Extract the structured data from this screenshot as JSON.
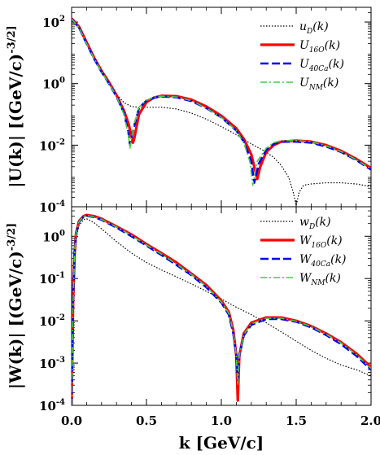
{
  "chart_data": [
    {
      "type": "line",
      "panel": "top",
      "ylabel": "|U(k)| [(GeV/c)^-3/2]",
      "xlabel": "",
      "xlim": [
        0,
        2.0
      ],
      "ylim": [
        0.0001,
        300
      ],
      "yscale": "log",
      "x_ticks": [
        0.0,
        0.5,
        1.0,
        1.5,
        2.0
      ],
      "y_ticks": [
        {
          "mant": "10",
          "exp": "2"
        },
        {
          "mant": "10",
          "exp": "0"
        },
        {
          "mant": "10",
          "exp": "-2"
        },
        {
          "mant": "10",
          "exp": "-4"
        }
      ],
      "legend_position": "top-right",
      "series": [
        {
          "name": "u_D(k)",
          "color": "#000000",
          "style": "dotted",
          "points": [
            [
              0.0,
              120
            ],
            [
              0.05,
              60
            ],
            [
              0.1,
              20
            ],
            [
              0.15,
              6
            ],
            [
              0.2,
              2.3
            ],
            [
              0.25,
              1.05
            ],
            [
              0.3,
              0.45
            ],
            [
              0.35,
              0.24
            ],
            [
              0.4,
              0.18
            ],
            [
              0.45,
              0.17
            ],
            [
              0.5,
              0.17
            ],
            [
              0.6,
              0.17
            ],
            [
              0.7,
              0.15
            ],
            [
              0.8,
              0.11
            ],
            [
              0.9,
              0.07
            ],
            [
              1.0,
              0.04
            ],
            [
              1.1,
              0.022
            ],
            [
              1.2,
              0.011
            ],
            [
              1.3,
              0.006
            ],
            [
              1.35,
              0.004
            ],
            [
              1.4,
              0.0022
            ],
            [
              1.45,
              0.0009
            ],
            [
              1.48,
              0.0003
            ],
            [
              1.5,
              0.00011
            ],
            [
              1.52,
              0.0003
            ],
            [
              1.55,
              0.0005
            ],
            [
              1.6,
              0.00055
            ],
            [
              1.7,
              0.0006
            ],
            [
              1.8,
              0.0006
            ],
            [
              1.9,
              0.00055
            ],
            [
              2.0,
              0.00045
            ]
          ]
        },
        {
          "name": "U_16O(k)",
          "color": "#ff0000",
          "style": "solid-thick",
          "points": [
            [
              0.0,
              130
            ],
            [
              0.05,
              70
            ],
            [
              0.1,
              22
            ],
            [
              0.15,
              7
            ],
            [
              0.2,
              2.6
            ],
            [
              0.25,
              1.1
            ],
            [
              0.3,
              0.42
            ],
            [
              0.35,
              0.13
            ],
            [
              0.38,
              0.05
            ],
            [
              0.4,
              0.02
            ],
            [
              0.41,
              0.012
            ],
            [
              0.42,
              0.018
            ],
            [
              0.45,
              0.1
            ],
            [
              0.5,
              0.25
            ],
            [
              0.55,
              0.35
            ],
            [
              0.6,
              0.4
            ],
            [
              0.7,
              0.39
            ],
            [
              0.8,
              0.3
            ],
            [
              0.9,
              0.18
            ],
            [
              1.0,
              0.09
            ],
            [
              1.1,
              0.035
            ],
            [
              1.15,
              0.016
            ],
            [
              1.2,
              0.005
            ],
            [
              1.24,
              0.0008
            ],
            [
              1.26,
              0.002
            ],
            [
              1.3,
              0.006
            ],
            [
              1.35,
              0.01
            ],
            [
              1.4,
              0.013
            ],
            [
              1.5,
              0.014
            ],
            [
              1.6,
              0.013
            ],
            [
              1.7,
              0.01
            ],
            [
              1.8,
              0.0065
            ],
            [
              1.9,
              0.0036
            ],
            [
              2.0,
              0.0018
            ]
          ]
        },
        {
          "name": "U_40Ca(k)",
          "color": "#0000ee",
          "style": "dashed",
          "points": [
            [
              0.0,
              125
            ],
            [
              0.05,
              65
            ],
            [
              0.1,
              20
            ],
            [
              0.15,
              6.5
            ],
            [
              0.2,
              2.4
            ],
            [
              0.25,
              1.0
            ],
            [
              0.3,
              0.38
            ],
            [
              0.35,
              0.11
            ],
            [
              0.38,
              0.025
            ],
            [
              0.39,
              0.01
            ],
            [
              0.41,
              0.03
            ],
            [
              0.45,
              0.16
            ],
            [
              0.5,
              0.28
            ],
            [
              0.55,
              0.35
            ],
            [
              0.6,
              0.38
            ],
            [
              0.7,
              0.36
            ],
            [
              0.8,
              0.27
            ],
            [
              0.9,
              0.16
            ],
            [
              1.0,
              0.08
            ],
            [
              1.1,
              0.03
            ],
            [
              1.15,
              0.013
            ],
            [
              1.2,
              0.003
            ],
            [
              1.22,
              0.0006
            ],
            [
              1.25,
              0.0025
            ],
            [
              1.3,
              0.007
            ],
            [
              1.35,
              0.011
            ],
            [
              1.4,
              0.013
            ],
            [
              1.5,
              0.013
            ],
            [
              1.6,
              0.012
            ],
            [
              1.7,
              0.009
            ],
            [
              1.8,
              0.006
            ],
            [
              1.9,
              0.0033
            ],
            [
              2.0,
              0.0016
            ]
          ]
        },
        {
          "name": "U_NM(k)",
          "color": "#44cc44",
          "style": "dashdot",
          "points": [
            [
              0.0,
              125
            ],
            [
              0.05,
              65
            ],
            [
              0.1,
              20
            ],
            [
              0.15,
              6.5
            ],
            [
              0.2,
              2.4
            ],
            [
              0.25,
              1.0
            ],
            [
              0.3,
              0.38
            ],
            [
              0.35,
              0.1
            ],
            [
              0.38,
              0.02
            ],
            [
              0.39,
              0.008
            ],
            [
              0.41,
              0.035
            ],
            [
              0.45,
              0.17
            ],
            [
              0.5,
              0.29
            ],
            [
              0.55,
              0.36
            ],
            [
              0.6,
              0.39
            ],
            [
              0.7,
              0.37
            ],
            [
              0.8,
              0.28
            ],
            [
              0.9,
              0.16
            ],
            [
              1.0,
              0.08
            ],
            [
              1.1,
              0.03
            ],
            [
              1.15,
              0.012
            ],
            [
              1.19,
              0.003
            ],
            [
              1.21,
              0.0005
            ],
            [
              1.24,
              0.003
            ],
            [
              1.3,
              0.008
            ],
            [
              1.35,
              0.012
            ],
            [
              1.4,
              0.014
            ],
            [
              1.5,
              0.014
            ],
            [
              1.6,
              0.013
            ],
            [
              1.7,
              0.0095
            ],
            [
              1.8,
              0.0062
            ],
            [
              1.9,
              0.0034
            ],
            [
              2.0,
              0.0017
            ]
          ]
        }
      ]
    },
    {
      "type": "line",
      "panel": "bottom",
      "ylabel": "|W(k)| [(GeV/c)^-3/2]",
      "xlabel": "k [GeV/c]",
      "xlim": [
        0,
        2.0
      ],
      "ylim": [
        0.0001,
        5
      ],
      "yscale": "log",
      "x_ticks": [
        0.0,
        0.5,
        1.0,
        1.5,
        2.0
      ],
      "y_ticks": [
        {
          "mant": "10",
          "exp": "0"
        },
        {
          "mant": "10",
          "exp": "-1"
        },
        {
          "mant": "10",
          "exp": "-2"
        },
        {
          "mant": "10",
          "exp": "-3"
        },
        {
          "mant": "10",
          "exp": "-4"
        }
      ],
      "legend_position": "top-right",
      "series": [
        {
          "name": "w_D(k)",
          "color": "#000000",
          "style": "dotted",
          "points": [
            [
              0.0,
              0.0001
            ],
            [
              0.01,
              0.02
            ],
            [
              0.02,
              0.3
            ],
            [
              0.03,
              0.9
            ],
            [
              0.05,
              1.8
            ],
            [
              0.08,
              2.5
            ],
            [
              0.1,
              2.6
            ],
            [
              0.15,
              2.1
            ],
            [
              0.2,
              1.5
            ],
            [
              0.3,
              0.75
            ],
            [
              0.4,
              0.4
            ],
            [
              0.5,
              0.24
            ],
            [
              0.6,
              0.16
            ],
            [
              0.7,
              0.11
            ],
            [
              0.8,
              0.075
            ],
            [
              0.9,
              0.05
            ],
            [
              1.0,
              0.033
            ],
            [
              1.1,
              0.021
            ],
            [
              1.2,
              0.014
            ],
            [
              1.3,
              0.009
            ],
            [
              1.4,
              0.0055
            ],
            [
              1.5,
              0.0033
            ],
            [
              1.6,
              0.002
            ],
            [
              1.7,
              0.0013
            ],
            [
              1.8,
              0.0009
            ],
            [
              1.9,
              0.0007
            ],
            [
              2.0,
              0.0005
            ]
          ]
        },
        {
          "name": "W_16O(k)",
          "color": "#ff0000",
          "style": "solid-thick",
          "points": [
            [
              0.0,
              0.0001
            ],
            [
              0.01,
              0.03
            ],
            [
              0.02,
              0.4
            ],
            [
              0.03,
              1.2
            ],
            [
              0.05,
              2.3
            ],
            [
              0.08,
              3.0
            ],
            [
              0.1,
              3.2
            ],
            [
              0.15,
              3.0
            ],
            [
              0.2,
              2.6
            ],
            [
              0.3,
              1.7
            ],
            [
              0.4,
              1.1
            ],
            [
              0.5,
              0.65
            ],
            [
              0.6,
              0.4
            ],
            [
              0.7,
              0.24
            ],
            [
              0.8,
              0.13
            ],
            [
              0.9,
              0.07
            ],
            [
              1.0,
              0.03
            ],
            [
              1.05,
              0.016
            ],
            [
              1.08,
              0.006
            ],
            [
              1.1,
              0.0015
            ],
            [
              1.11,
              0.00013
            ],
            [
              1.12,
              0.0015
            ],
            [
              1.15,
              0.005
            ],
            [
              1.2,
              0.009
            ],
            [
              1.3,
              0.012
            ],
            [
              1.4,
              0.012
            ],
            [
              1.5,
              0.01
            ],
            [
              1.6,
              0.0075
            ],
            [
              1.7,
              0.005
            ],
            [
              1.8,
              0.0031
            ],
            [
              1.9,
              0.0017
            ],
            [
              2.0,
              0.0008
            ]
          ]
        },
        {
          "name": "W_40Ca(k)",
          "color": "#0000ee",
          "style": "dashed",
          "points": [
            [
              0.0,
              0.0001
            ],
            [
              0.01,
              0.03
            ],
            [
              0.02,
              0.38
            ],
            [
              0.03,
              1.15
            ],
            [
              0.05,
              2.2
            ],
            [
              0.08,
              2.9
            ],
            [
              0.1,
              3.05
            ],
            [
              0.15,
              2.85
            ],
            [
              0.2,
              2.45
            ],
            [
              0.3,
              1.6
            ],
            [
              0.4,
              1.0
            ],
            [
              0.5,
              0.6
            ],
            [
              0.6,
              0.36
            ],
            [
              0.7,
              0.21
            ],
            [
              0.8,
              0.12
            ],
            [
              0.9,
              0.062
            ],
            [
              1.0,
              0.027
            ],
            [
              1.05,
              0.014
            ],
            [
              1.08,
              0.005
            ],
            [
              1.1,
              0.0015
            ],
            [
              1.11,
              0.0004
            ],
            [
              1.12,
              0.0015
            ],
            [
              1.15,
              0.0045
            ],
            [
              1.2,
              0.008
            ],
            [
              1.3,
              0.011
            ],
            [
              1.4,
              0.011
            ],
            [
              1.5,
              0.0095
            ],
            [
              1.6,
              0.007
            ],
            [
              1.7,
              0.0046
            ],
            [
              1.8,
              0.0028
            ],
            [
              1.9,
              0.0015
            ],
            [
              2.0,
              0.0007
            ]
          ]
        },
        {
          "name": "W_NM(k)",
          "color": "#44cc44",
          "style": "dashdot",
          "points": [
            [
              0.0,
              0.0001
            ],
            [
              0.01,
              0.03
            ],
            [
              0.02,
              0.39
            ],
            [
              0.03,
              1.18
            ],
            [
              0.05,
              2.25
            ],
            [
              0.08,
              2.95
            ],
            [
              0.1,
              3.1
            ],
            [
              0.15,
              2.9
            ],
            [
              0.2,
              2.5
            ],
            [
              0.3,
              1.65
            ],
            [
              0.4,
              1.05
            ],
            [
              0.5,
              0.62
            ],
            [
              0.6,
              0.38
            ],
            [
              0.7,
              0.22
            ],
            [
              0.8,
              0.125
            ],
            [
              0.9,
              0.065
            ],
            [
              1.0,
              0.028
            ],
            [
              1.05,
              0.015
            ],
            [
              1.08,
              0.0055
            ],
            [
              1.1,
              0.0015
            ],
            [
              1.11,
              0.0003
            ],
            [
              1.12,
              0.0015
            ],
            [
              1.15,
              0.0047
            ],
            [
              1.2,
              0.0085
            ],
            [
              1.3,
              0.0115
            ],
            [
              1.4,
              0.0115
            ],
            [
              1.5,
              0.0098
            ],
            [
              1.6,
              0.0073
            ],
            [
              1.7,
              0.0048
            ],
            [
              1.8,
              0.003
            ],
            [
              1.9,
              0.0016
            ],
            [
              2.0,
              0.00075
            ]
          ]
        }
      ]
    }
  ]
}
